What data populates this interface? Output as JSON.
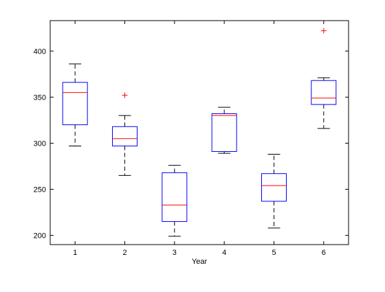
{
  "chart_data": {
    "type": "boxplot",
    "title": "",
    "xlabel": "Year",
    "ylabel": "",
    "categories": [
      "1",
      "2",
      "3",
      "4",
      "5",
      "6"
    ],
    "ylim": [
      190,
      433
    ],
    "yticks": [
      200,
      250,
      300,
      350,
      400
    ],
    "grid": false,
    "colors": {
      "box": "#0000ff",
      "median": "#ff0000",
      "whisker": "#000000",
      "outlier": "#ff0000"
    },
    "boxes": [
      {
        "category": "1",
        "whisker_low": 297,
        "q1": 320,
        "median": 355,
        "q3": 366,
        "whisker_high": 386,
        "outliers": []
      },
      {
        "category": "2",
        "whisker_low": 265,
        "q1": 297,
        "median": 305,
        "q3": 318,
        "whisker_high": 330,
        "outliers": [
          352
        ]
      },
      {
        "category": "3",
        "whisker_low": 199,
        "q1": 215,
        "median": 233,
        "q3": 268,
        "whisker_high": 276,
        "outliers": []
      },
      {
        "category": "4",
        "whisker_low": 289,
        "q1": 291,
        "median": 330,
        "q3": 332,
        "whisker_high": 339,
        "outliers": []
      },
      {
        "category": "5",
        "whisker_low": 208,
        "q1": 237,
        "median": 254,
        "q3": 267,
        "whisker_high": 288,
        "outliers": []
      },
      {
        "category": "6",
        "whisker_low": 316,
        "q1": 342,
        "median": 349,
        "q3": 368,
        "whisker_high": 371,
        "outliers": [
          422
        ]
      }
    ]
  }
}
